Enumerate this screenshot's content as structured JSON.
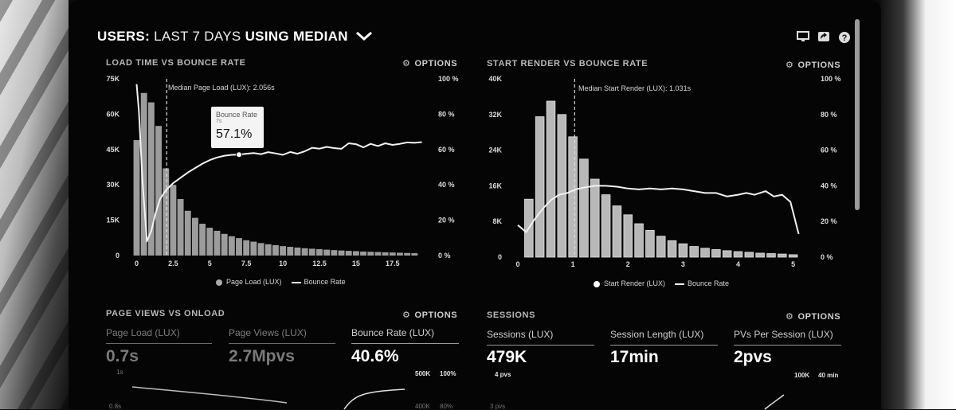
{
  "header": {
    "title_strong1": "USERS:",
    "title_thin": "LAST 7 DAYS",
    "title_strong2": "USING",
    "title_strong3": "MEDIAN",
    "icons": [
      "monitor-icon",
      "share-icon",
      "help-icon"
    ]
  },
  "panels": {
    "load": {
      "title": "LOAD TIME VS BOUNCE RATE",
      "options_label": "OPTIONS",
      "median_note": "Median Page Load (LUX): 2.056s",
      "legend_bar": "Page Load (LUX)",
      "legend_line": "Bounce Rate",
      "tooltip": {
        "label": "Bounce Rate",
        "sub": "7s",
        "value": "57.1%"
      }
    },
    "render": {
      "title": "START RENDER VS BOUNCE RATE",
      "options_label": "OPTIONS",
      "median_note": "Median Start Render (LUX): 1.031s",
      "legend_bar": "Start Render (LUX)",
      "legend_line": "Bounce Rate"
    },
    "pageviews": {
      "title": "PAGE VIEWS VS ONLOAD",
      "options_label": "OPTIONS",
      "metrics": [
        {
          "label": "Page Load (LUX)",
          "value": "0.7s"
        },
        {
          "label": "Page Views (LUX)",
          "value": "2.7Mpvs"
        },
        {
          "label": "Bounce Rate (LUX)",
          "value": "40.6%"
        }
      ],
      "ticks": {
        "y1": "1s",
        "y2": "0.8s",
        "r1": "500K",
        "r2": "100%",
        "r3": "400K",
        "r4": "80%"
      }
    },
    "sessions": {
      "title": "SESSIONS",
      "options_label": "OPTIONS",
      "metrics": [
        {
          "label": "Sessions (LUX)",
          "value": "479K"
        },
        {
          "label": "Session Length (LUX)",
          "value": "17min"
        },
        {
          "label": "PVs Per Session (LUX)",
          "value": "2pvs"
        }
      ],
      "ticks": {
        "a": "4 pvs",
        "b": "100K",
        "c": "40 min",
        "d": "3 pvs"
      }
    }
  },
  "chart_data": [
    {
      "type": "bar",
      "title": "LOAD TIME VS BOUNCE RATE",
      "x_ticks": [
        "0",
        "2.5",
        "5",
        "7.5",
        "10",
        "12.5",
        "15",
        "17.5"
      ],
      "y_left_ticks": [
        "0",
        "15K",
        "30K",
        "45K",
        "60K",
        "75K"
      ],
      "y_right_ticks": [
        "0 %",
        "20 %",
        "40 %",
        "60 %",
        "80 %",
        "100 %"
      ],
      "xlim": [
        -0.3,
        19.8
      ],
      "ylim_left": [
        0,
        75000
      ],
      "ylim_right": [
        0,
        100
      ],
      "bar_width": 0.43,
      "series": [
        {
          "name": "Page Load (LUX)",
          "type": "bar",
          "x": [
            0,
            0.5,
            1,
            1.5,
            2,
            2.5,
            3,
            3.5,
            4,
            4.5,
            5,
            5.5,
            6,
            6.5,
            7,
            7.5,
            8,
            8.5,
            9,
            9.5,
            10,
            10.5,
            11,
            11.5,
            12,
            12.5,
            13,
            13.5,
            14,
            14.5,
            15,
            15.5,
            16,
            16.5,
            17,
            17.5,
            18,
            18.5,
            19
          ],
          "values": [
            49000,
            69000,
            65000,
            55000,
            37000,
            30000,
            24000,
            19000,
            16000,
            13500,
            11800,
            10500,
            9200,
            8200,
            7400,
            6500,
            5900,
            5300,
            4800,
            4400,
            4000,
            3700,
            3400,
            3100,
            2900,
            2700,
            2500,
            2300,
            2150,
            2000,
            1850,
            1700,
            1600,
            1500,
            1400,
            1300,
            1200,
            1100,
            1000
          ]
        },
        {
          "name": "Bounce Rate",
          "type": "line",
          "x": [
            0,
            0.15,
            0.4,
            0.7,
            1,
            1.3,
            1.6,
            2,
            2.5,
            3,
            3.5,
            4,
            4.5,
            5,
            5.5,
            6,
            6.5,
            7,
            7.5,
            8,
            8.5,
            9,
            9.5,
            10,
            10.5,
            11,
            11.5,
            12,
            12.5,
            13,
            13.5,
            14,
            14.5,
            15,
            15.5,
            16,
            16.5,
            17,
            17.5,
            18,
            18.5,
            19,
            19.5
          ],
          "values": [
            97,
            82,
            42,
            8,
            14,
            24,
            32,
            37,
            41,
            44,
            47,
            49.5,
            52,
            54,
            55.5,
            56.5,
            57,
            57.1,
            57.6,
            58,
            57.4,
            58.5,
            57.8,
            57,
            58.6,
            57.6,
            59,
            61,
            60.5,
            61.5,
            60.8,
            60.4,
            63.5,
            63,
            61.2,
            63.2,
            62,
            63.5,
            62.6,
            63.2,
            64,
            63.8,
            64.2
          ]
        }
      ],
      "median": 2.056
    },
    {
      "type": "bar",
      "title": "START RENDER VS BOUNCE RATE",
      "x_ticks": [
        "0",
        "1",
        "2",
        "3",
        "4",
        "5"
      ],
      "y_left_ticks": [
        "0",
        "8K",
        "16K",
        "24K",
        "32K",
        "40K"
      ],
      "y_right_ticks": [
        "0 %",
        "20 %",
        "40 %",
        "60 %",
        "80 %",
        "100 %"
      ],
      "xlim": [
        0,
        5.15
      ],
      "ylim_left": [
        0,
        40000
      ],
      "ylim_right": [
        0,
        100
      ],
      "bar_width": 0.155,
      "series": [
        {
          "name": "Start Render (LUX)",
          "type": "bar",
          "x": [
            0.2,
            0.4,
            0.6,
            0.8,
            1,
            1.2,
            1.4,
            1.6,
            1.8,
            2,
            2.2,
            2.4,
            2.6,
            2.8,
            3,
            3.2,
            3.4,
            3.6,
            3.8,
            4,
            4.2,
            4.4,
            4.6,
            4.8,
            5
          ],
          "values": [
            13000,
            31500,
            35000,
            32000,
            27000,
            22000,
            17500,
            14000,
            11500,
            9500,
            7500,
            6000,
            4700,
            3700,
            3000,
            2400,
            2000,
            1700,
            1450,
            1250,
            1100,
            900,
            800,
            700,
            550
          ]
        },
        {
          "name": "Bounce Rate",
          "type": "line",
          "x": [
            0,
            0.15,
            0.3,
            0.45,
            0.6,
            0.75,
            0.9,
            1.05,
            1.2,
            1.4,
            1.6,
            1.8,
            2,
            2.2,
            2.4,
            2.6,
            2.8,
            3,
            3.2,
            3.4,
            3.6,
            3.8,
            4,
            4.15,
            4.3,
            4.5,
            4.65,
            4.8,
            4.95,
            5.1
          ],
          "values": [
            18,
            14,
            21,
            27,
            32,
            35,
            36,
            38,
            39,
            40,
            40,
            39.5,
            38.5,
            38,
            38.5,
            38,
            38.5,
            38,
            37,
            36,
            36,
            34,
            35,
            36,
            35,
            37,
            34,
            35,
            31,
            13
          ]
        }
      ],
      "median": 1.031
    }
  ]
}
